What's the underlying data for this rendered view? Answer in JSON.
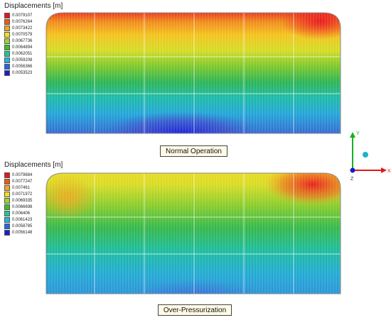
{
  "top": {
    "title": "Displacements [m]",
    "caption": "Normal Operation",
    "legend": {
      "labels": [
        "0.0079107",
        "0.0076264",
        "0.0073422",
        "0.0070579",
        "0.0067736",
        "0.0064894",
        "0.0062051",
        "0.0059208",
        "0.0056366",
        "0.0053523"
      ],
      "colors": [
        "#e8141b",
        "#f05a14",
        "#f4a41c",
        "#f0e01c",
        "#9ed428",
        "#38c024",
        "#1cc89a",
        "#1eb4e8",
        "#2068e8",
        "#1a1adc"
      ]
    },
    "field": [
      {
        "stop": 0.0,
        "color": "#e8141b"
      },
      {
        "stop": 0.1,
        "color": "#f08a1c"
      },
      {
        "stop": 0.2,
        "color": "#f4c21c"
      },
      {
        "stop": 0.32,
        "color": "#d4dc24"
      },
      {
        "stop": 0.44,
        "color": "#7cc82a"
      },
      {
        "stop": 0.56,
        "color": "#2cb454"
      },
      {
        "stop": 0.68,
        "color": "#1cbaa8"
      },
      {
        "stop": 0.8,
        "color": "#22a6d8"
      },
      {
        "stop": 1.0,
        "color": "#3858d0"
      }
    ]
  },
  "bottom": {
    "title": "Displacements [m]",
    "caption": "Over-Pressurization",
    "legend": {
      "labels": [
        "0.0079884",
        "0.0077247",
        "0.007461",
        "0.0071972",
        "0.0069335",
        "0.0066698",
        "0.006406",
        "0.0061423",
        "0.0058785",
        "0.0056148"
      ],
      "colors": [
        "#e8141b",
        "#f05a14",
        "#f4a41c",
        "#f0e01c",
        "#9ed428",
        "#38c024",
        "#1cc89a",
        "#1eb4e8",
        "#2068e8",
        "#1a1adc"
      ]
    },
    "field": [
      {
        "stop": 0.0,
        "color": "#f0d820"
      },
      {
        "stop": 0.12,
        "color": "#d8dc24"
      },
      {
        "stop": 0.28,
        "color": "#88cc2a"
      },
      {
        "stop": 0.45,
        "color": "#34b84a"
      },
      {
        "stop": 0.62,
        "color": "#1cbc9c"
      },
      {
        "stop": 0.8,
        "color": "#22aad4"
      },
      {
        "stop": 1.0,
        "color": "#2c8ed8"
      }
    ]
  },
  "triad": {
    "x": "X",
    "y": "Y",
    "z": "Z",
    "x_color": "#e01818",
    "y_color": "#18b020",
    "z_color": "#1818d8"
  }
}
